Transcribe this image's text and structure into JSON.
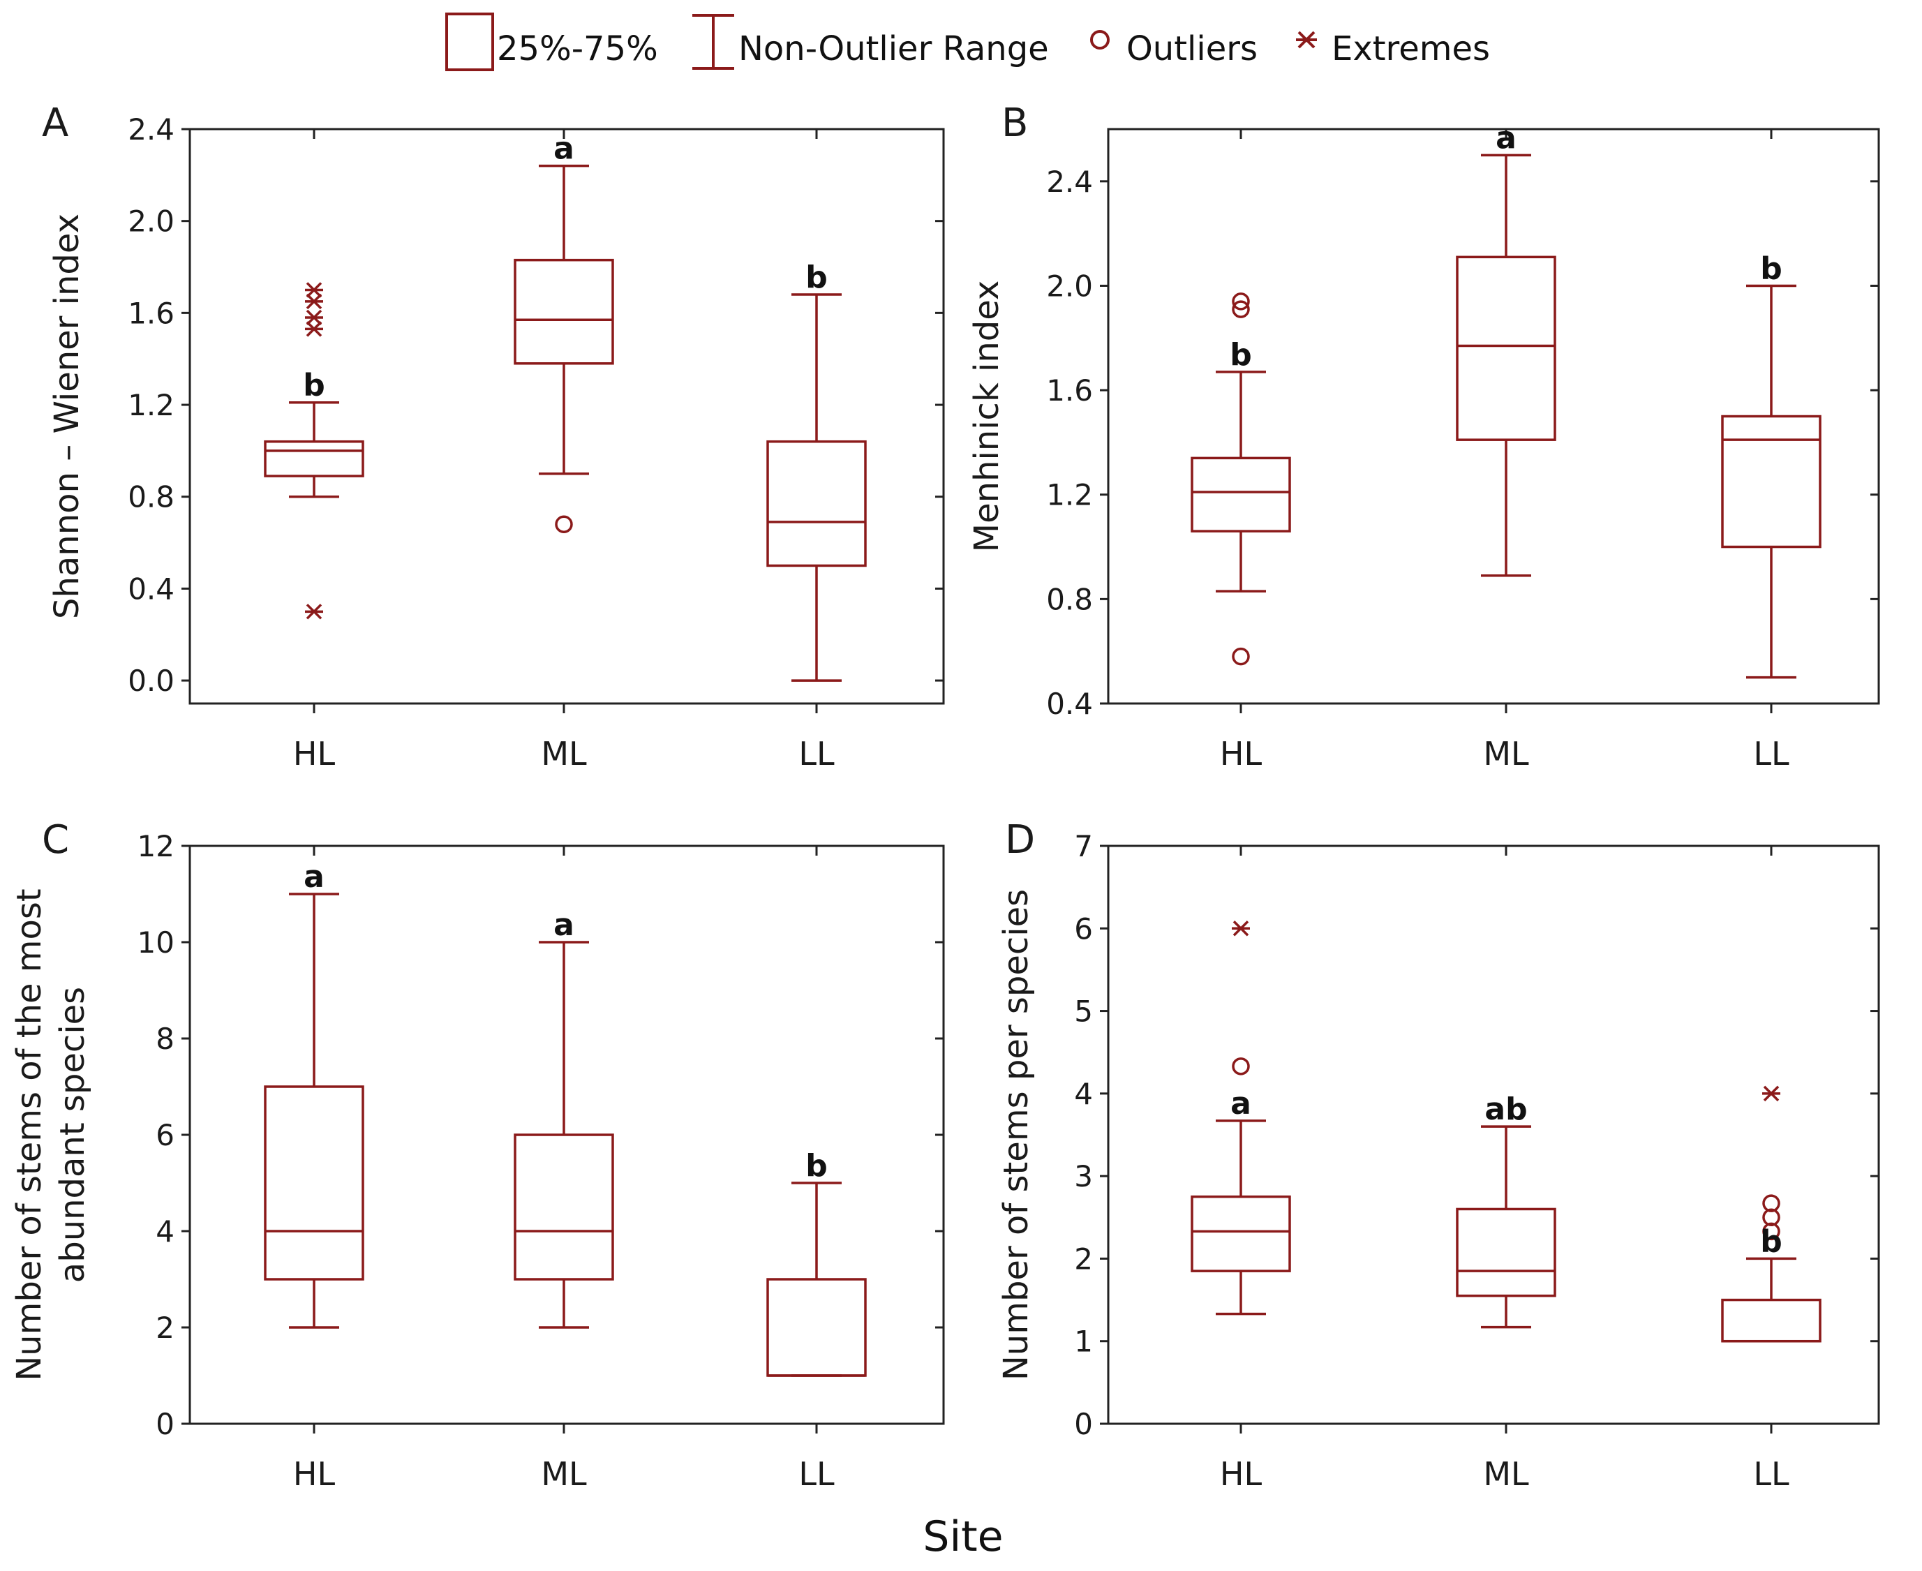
{
  "colors": {
    "box": "#8b1a1a",
    "text": "#1a1a1a"
  },
  "legend": {
    "box_label": "25%-75%",
    "range_label": "Non-Outlier Range",
    "outliers_label": "Outliers",
    "extremes_label": "Extremes"
  },
  "shared_xlabel": "Site",
  "chart_data": [
    {
      "type": "box",
      "panel": "A",
      "ylabel": "Shannon – Wiener index",
      "xlabel": "",
      "categories": [
        "HL",
        "ML",
        "LL"
      ],
      "ylim": [
        -0.1,
        2.4
      ],
      "yticks": [
        0.0,
        0.4,
        0.8,
        1.2,
        1.6,
        2.0,
        2.4
      ],
      "yticklabels": [
        "0.0",
        "0.4",
        "0.8",
        "1.2",
        "1.6",
        "2.0",
        "2.4"
      ],
      "boxes": [
        {
          "category": "HL",
          "q1": 0.89,
          "median": 1.0,
          "q3": 1.04,
          "whisker_low": 0.8,
          "whisker_high": 1.21,
          "outliers": [],
          "extremes": [
            0.3,
            1.53,
            1.58,
            1.65,
            1.7
          ],
          "letter": "b"
        },
        {
          "category": "ML",
          "q1": 1.38,
          "median": 1.57,
          "q3": 1.83,
          "whisker_low": 0.9,
          "whisker_high": 2.24,
          "outliers": [
            0.68
          ],
          "extremes": [],
          "letter": "a"
        },
        {
          "category": "LL",
          "q1": 0.5,
          "median": 0.69,
          "q3": 1.04,
          "whisker_low": 0.0,
          "whisker_high": 1.68,
          "outliers": [],
          "extremes": [],
          "letter": "b"
        }
      ]
    },
    {
      "type": "box",
      "panel": "B",
      "ylabel": "Menhinick index",
      "xlabel": "",
      "categories": [
        "HL",
        "ML",
        "LL"
      ],
      "ylim": [
        0.4,
        2.6
      ],
      "yticks": [
        0.4,
        0.8,
        1.2,
        1.6,
        2.0,
        2.4
      ],
      "yticklabels": [
        "0.4",
        "0.8",
        "1.2",
        "1.6",
        "2.0",
        "2.4"
      ],
      "boxes": [
        {
          "category": "HL",
          "q1": 1.06,
          "median": 1.21,
          "q3": 1.34,
          "whisker_low": 0.83,
          "whisker_high": 1.67,
          "outliers": [
            0.58,
            1.91,
            1.94
          ],
          "extremes": [],
          "letter": "b"
        },
        {
          "category": "ML",
          "q1": 1.41,
          "median": 1.77,
          "q3": 2.11,
          "whisker_low": 0.89,
          "whisker_high": 2.5,
          "outliers": [],
          "extremes": [],
          "letter": "a"
        },
        {
          "category": "LL",
          "q1": 1.0,
          "median": 1.41,
          "q3": 1.5,
          "whisker_low": 0.5,
          "whisker_high": 2.0,
          "outliers": [],
          "extremes": [],
          "letter": "b"
        }
      ]
    },
    {
      "type": "box",
      "panel": "C",
      "ylabel": "Number of stems of the most abundant species",
      "ylabel_lines": [
        "Number of stems of the most",
        "abundant species"
      ],
      "xlabel": "",
      "categories": [
        "HL",
        "ML",
        "LL"
      ],
      "ylim": [
        0,
        12
      ],
      "yticks": [
        0,
        2,
        4,
        6,
        8,
        10,
        12
      ],
      "yticklabels": [
        "0",
        "2",
        "4",
        "6",
        "8",
        "10",
        "12"
      ],
      "boxes": [
        {
          "category": "HL",
          "q1": 3,
          "median": 4,
          "q3": 7,
          "whisker_low": 2,
          "whisker_high": 11,
          "outliers": [],
          "extremes": [],
          "letter": "a"
        },
        {
          "category": "ML",
          "q1": 3,
          "median": 4,
          "q3": 6,
          "whisker_low": 2,
          "whisker_high": 10,
          "outliers": [],
          "extremes": [],
          "letter": "a"
        },
        {
          "category": "LL",
          "q1": 1,
          "median": 1,
          "q3": 3,
          "whisker_low": 1,
          "whisker_high": 5,
          "outliers": [],
          "extremes": [],
          "letter": "b"
        }
      ]
    },
    {
      "type": "box",
      "panel": "D",
      "ylabel": "Number of stems per species",
      "xlabel": "",
      "categories": [
        "HL",
        "ML",
        "LL"
      ],
      "ylim": [
        0,
        7
      ],
      "yticks": [
        0,
        1,
        2,
        3,
        4,
        5,
        6,
        7
      ],
      "yticklabels": [
        "0",
        "1",
        "2",
        "3",
        "4",
        "5",
        "6",
        "7"
      ],
      "boxes": [
        {
          "category": "HL",
          "q1": 1.85,
          "median": 2.33,
          "q3": 2.75,
          "whisker_low": 1.33,
          "whisker_high": 3.67,
          "outliers": [
            4.33
          ],
          "extremes": [
            6.0
          ],
          "letter": "a"
        },
        {
          "category": "ML",
          "q1": 1.55,
          "median": 1.85,
          "q3": 2.6,
          "whisker_low": 1.17,
          "whisker_high": 3.6,
          "outliers": [],
          "extremes": [],
          "letter": "ab"
        },
        {
          "category": "LL",
          "q1": 1.0,
          "median": 1.0,
          "q3": 1.5,
          "whisker_low": 1.0,
          "whisker_high": 2.0,
          "outliers": [
            2.33,
            2.5,
            2.67
          ],
          "extremes": [
            4.0
          ],
          "letter": "b"
        }
      ]
    }
  ]
}
